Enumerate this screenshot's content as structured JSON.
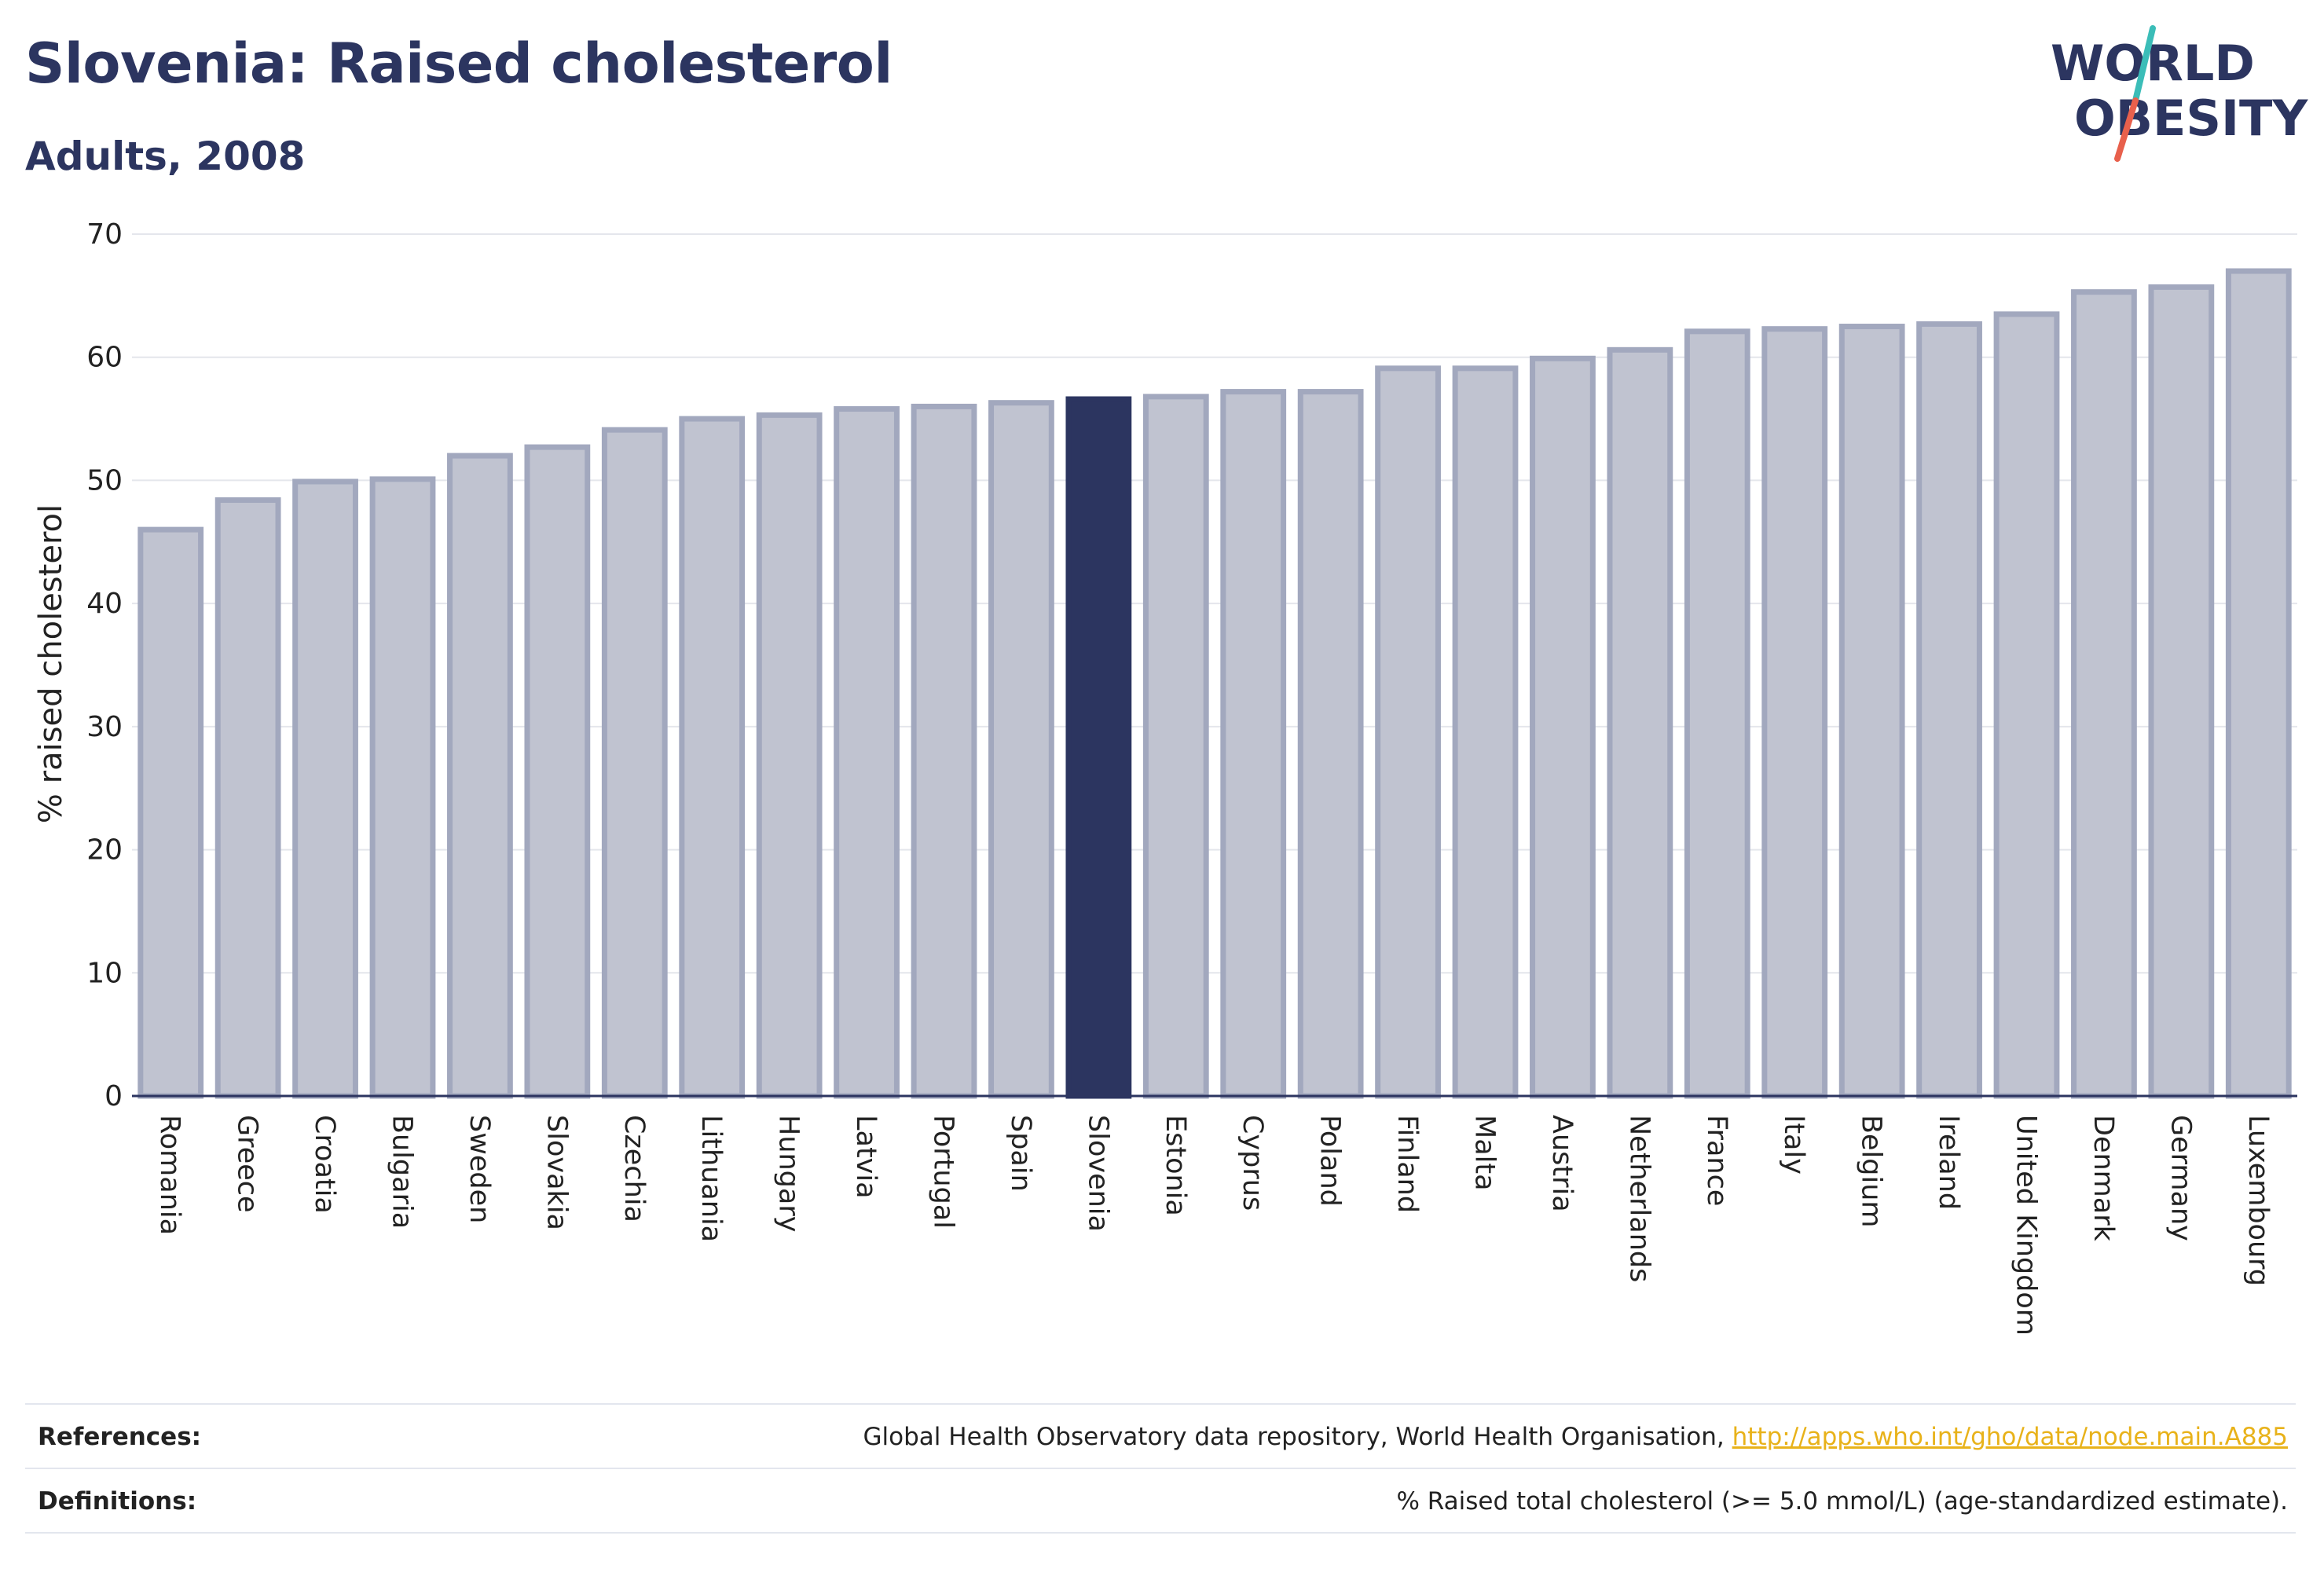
{
  "header": {
    "title": "Slovenia: Raised cholesterol",
    "subtitle": "Adults, 2008"
  },
  "logo": {
    "line1": "WORLD",
    "line2": "OBESITY"
  },
  "colors": {
    "highlight_bar": "#2c3560",
    "bar": "#c0c3d0",
    "bar_border": "#a2a8be",
    "accent_teal": "#3bbdb8",
    "accent_red": "#e8604c",
    "link": "#e8b21a"
  },
  "chart_data": {
    "type": "bar",
    "title": "Slovenia: Raised cholesterol",
    "subtitle": "Adults, 2008",
    "ylabel": "% raised cholesterol",
    "xlabel": "",
    "ylim": [
      0,
      70
    ],
    "yticks": [
      0,
      10,
      20,
      30,
      40,
      50,
      60,
      70
    ],
    "grid": true,
    "highlight": "Slovenia",
    "categories": [
      "Romania",
      "Greece",
      "Croatia",
      "Bulgaria",
      "Sweden",
      "Slovakia",
      "Czechia",
      "Lithuania",
      "Hungary",
      "Latvia",
      "Portugal",
      "Spain",
      "Slovenia",
      "Estonia",
      "Cyprus",
      "Poland",
      "Finland",
      "Malta",
      "Austria",
      "Netherlands",
      "France",
      "Italy",
      "Belgium",
      "Ireland",
      "United Kingdom",
      "Denmark",
      "Germany",
      "Luxembourg"
    ],
    "values": [
      46.0,
      48.4,
      49.9,
      50.1,
      52.0,
      52.7,
      54.1,
      55.0,
      55.3,
      55.8,
      56.0,
      56.3,
      56.6,
      56.8,
      57.2,
      57.2,
      59.1,
      59.1,
      59.9,
      60.6,
      62.1,
      62.3,
      62.5,
      62.7,
      63.5,
      65.3,
      65.7,
      67.0
    ]
  },
  "footer": {
    "references_label": "References:",
    "references_text": "Global Health Observatory data repository, World Health Organisation, ",
    "references_link": "http://apps.who.int/gho/data/node.main.A885",
    "definitions_label": "Definitions:",
    "definitions_text": "% Raised total cholesterol (>= 5.0 mmol/L) (age-standardized estimate)."
  }
}
